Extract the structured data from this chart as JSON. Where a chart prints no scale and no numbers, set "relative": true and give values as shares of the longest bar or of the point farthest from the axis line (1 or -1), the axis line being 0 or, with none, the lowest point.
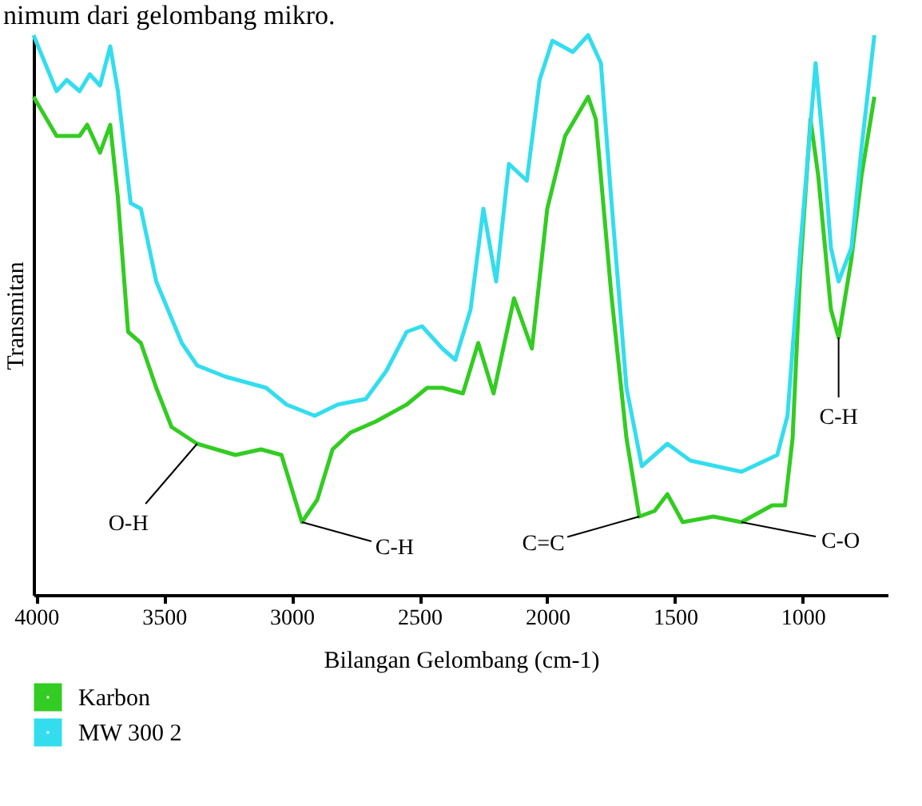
{
  "chart_data": {
    "type": "line",
    "relative": true,
    "xlabel": "Bilangan Gelombang (cm-1)",
    "ylabel": "Transmitan",
    "xlim": [
      4010,
      665
    ],
    "xticks": [
      4000,
      3500,
      3000,
      2500,
      2000,
      1500,
      1000
    ],
    "grid": false,
    "legend": "bottom left",
    "marker": "none",
    "line_style": "solid",
    "series": [
      {
        "name": "Karbon",
        "color": "#33cc22",
        "x": [
          4010,
          3920,
          3830,
          3800,
          3750,
          3710,
          3680,
          3640,
          3590,
          3530,
          3470,
          3370,
          3220,
          3120,
          3040,
          2960,
          2900,
          2840,
          2770,
          2670,
          2550,
          2470,
          2410,
          2330,
          2270,
          2210,
          2130,
          2060,
          2000,
          1930,
          1840,
          1810,
          1750,
          1690,
          1640,
          1580,
          1530,
          1470,
          1350,
          1240,
          1120,
          1070,
          1040,
          1010,
          970,
          940,
          890,
          860,
          810,
          770,
          720
        ],
        "values": [
          0.89,
          0.82,
          0.82,
          0.84,
          0.79,
          0.84,
          0.71,
          0.47,
          0.45,
          0.37,
          0.3,
          0.27,
          0.25,
          0.26,
          0.25,
          0.13,
          0.17,
          0.26,
          0.29,
          0.31,
          0.34,
          0.37,
          0.37,
          0.36,
          0.45,
          0.36,
          0.53,
          0.44,
          0.69,
          0.82,
          0.89,
          0.85,
          0.54,
          0.28,
          0.14,
          0.15,
          0.18,
          0.13,
          0.14,
          0.13,
          0.16,
          0.16,
          0.28,
          0.58,
          0.85,
          0.75,
          0.51,
          0.46,
          0.6,
          0.75,
          0.89
        ]
      },
      {
        "name": "MW 300 2",
        "color": "#33ddee",
        "x": [
          4010,
          3920,
          3880,
          3830,
          3790,
          3750,
          3710,
          3680,
          3630,
          3590,
          3530,
          3430,
          3370,
          3260,
          3100,
          3020,
          2910,
          2820,
          2710,
          2630,
          2550,
          2490,
          2410,
          2360,
          2300,
          2250,
          2200,
          2150,
          2080,
          2030,
          1980,
          1900,
          1840,
          1790,
          1750,
          1690,
          1630,
          1530,
          1440,
          1240,
          1100,
          1060,
          1010,
          950,
          920,
          890,
          860,
          810,
          770,
          720
        ],
        "values": [
          1.0,
          0.9,
          0.92,
          0.9,
          0.93,
          0.91,
          0.98,
          0.9,
          0.7,
          0.69,
          0.56,
          0.45,
          0.41,
          0.39,
          0.37,
          0.34,
          0.32,
          0.34,
          0.35,
          0.4,
          0.47,
          0.48,
          0.44,
          0.42,
          0.51,
          0.69,
          0.56,
          0.77,
          0.74,
          0.92,
          0.99,
          0.97,
          1.0,
          0.95,
          0.71,
          0.37,
          0.23,
          0.27,
          0.24,
          0.22,
          0.25,
          0.32,
          0.62,
          0.95,
          0.8,
          0.62,
          0.56,
          0.62,
          0.8,
          1.0
        ]
      }
    ],
    "annotations": [
      "nimum dari gelombang mikro.",
      {
        "text": "O-H",
        "x": 3370,
        "y": 0.27
      },
      {
        "text": "C-H",
        "x": 2960,
        "y": 0.13
      },
      {
        "text": "C=C",
        "x": 1640,
        "y": 0.14
      },
      {
        "text": "C-O",
        "x": 1240,
        "y": 0.13
      },
      {
        "text": "C-H",
        "x": 860,
        "y": 0.46
      }
    ]
  }
}
